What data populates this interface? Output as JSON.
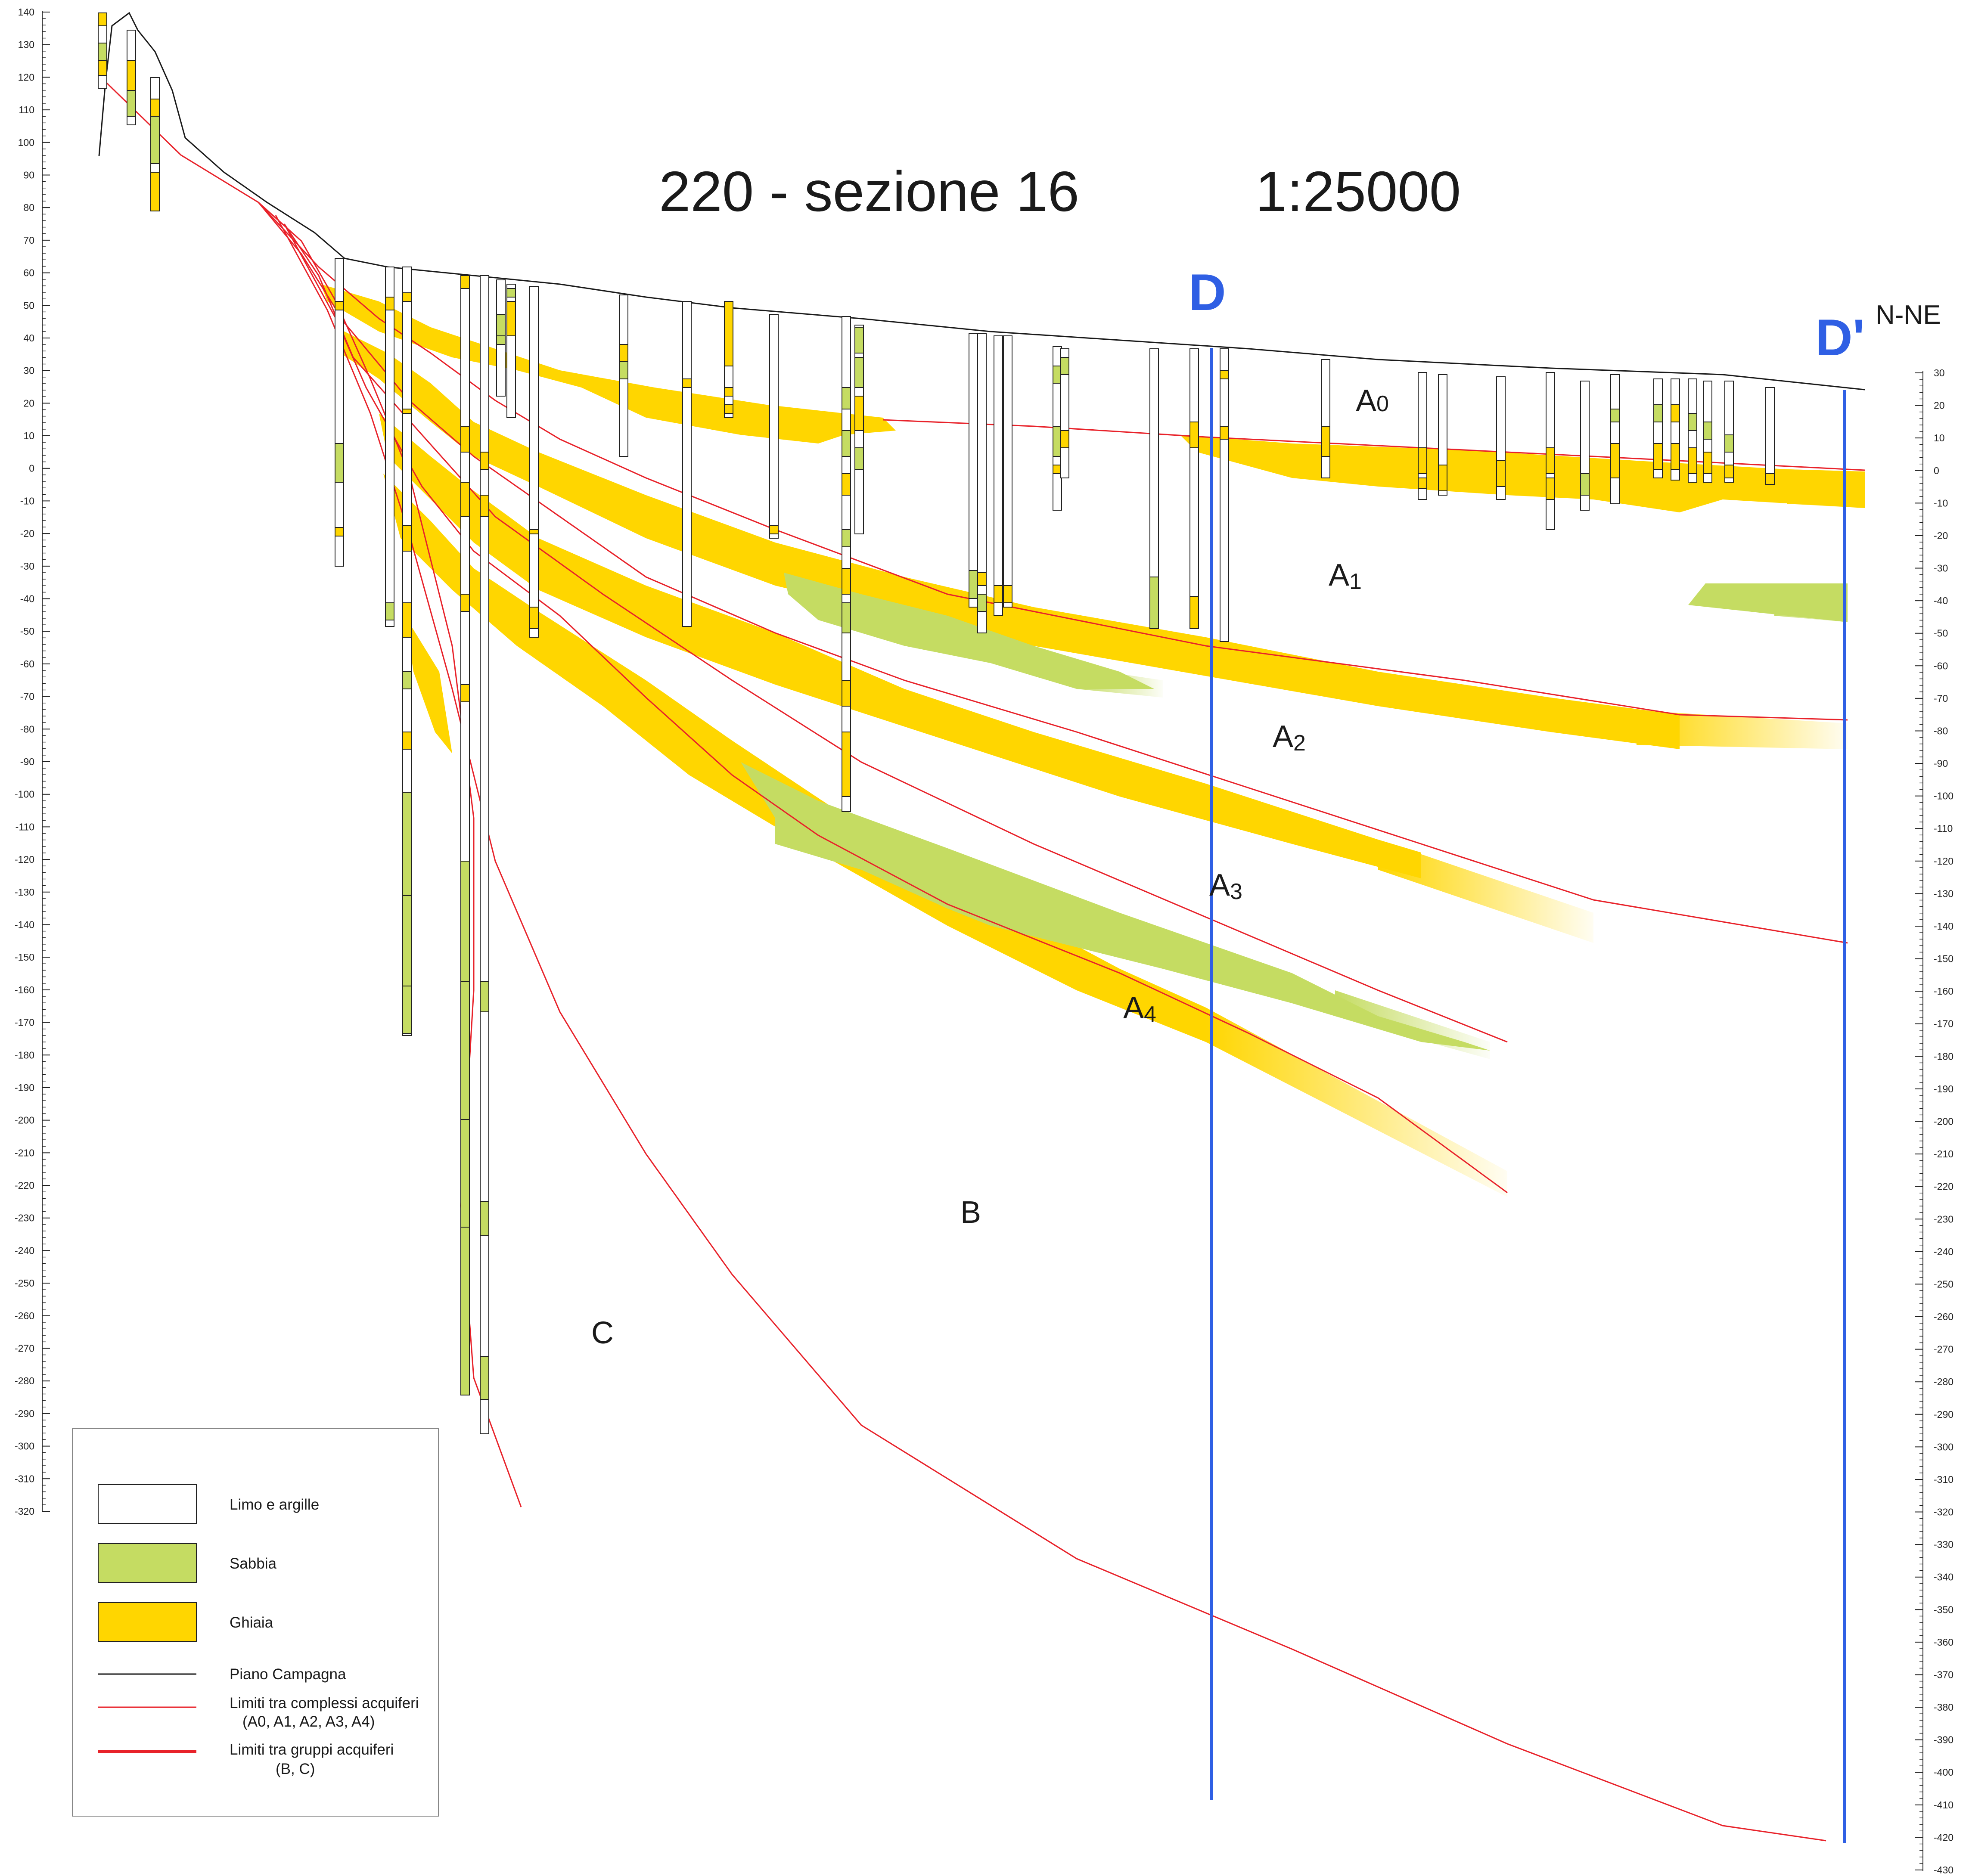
{
  "title": "220 - sezione 16",
  "scale": "1:25000",
  "direction_label": "N-NE",
  "section_markers": [
    "D",
    "D'"
  ],
  "left_axis": {
    "min": -320,
    "max": 140,
    "step": 10
  },
  "right_axis": {
    "min": -430,
    "max": 30,
    "step": 10
  },
  "zones": [
    {
      "id": "A0",
      "main": "A",
      "sub": "0"
    },
    {
      "id": "A1",
      "main": "A",
      "sub": "1"
    },
    {
      "id": "A2",
      "main": "A",
      "sub": "2"
    },
    {
      "id": "A3",
      "main": "A",
      "sub": "3"
    },
    {
      "id": "A4",
      "main": "A",
      "sub": "4"
    },
    {
      "id": "B",
      "main": "B",
      "sub": ""
    },
    {
      "id": "C",
      "main": "C",
      "sub": ""
    }
  ],
  "legend": {
    "limo": "Limo e argille",
    "sabbia": "Sabbia",
    "ghiaia": "Ghiaia",
    "piano": "Piano Campagna",
    "limiti_complessi": "Limiti tra complessi acquiferi",
    "limiti_complessi_sub": "(A0, A1, A2, A3, A4)",
    "limiti_gruppi": "Limiti tra gruppi acquiferi",
    "limiti_gruppi_sub": "(B, C)"
  },
  "colors": {
    "limo": "#ffffff",
    "sabbia": "#c5dc62",
    "ghiaia": "#ffd600",
    "boundary": "#e8222a",
    "marker": "#2f5fe4",
    "ground": "#1a1a1a"
  }
}
